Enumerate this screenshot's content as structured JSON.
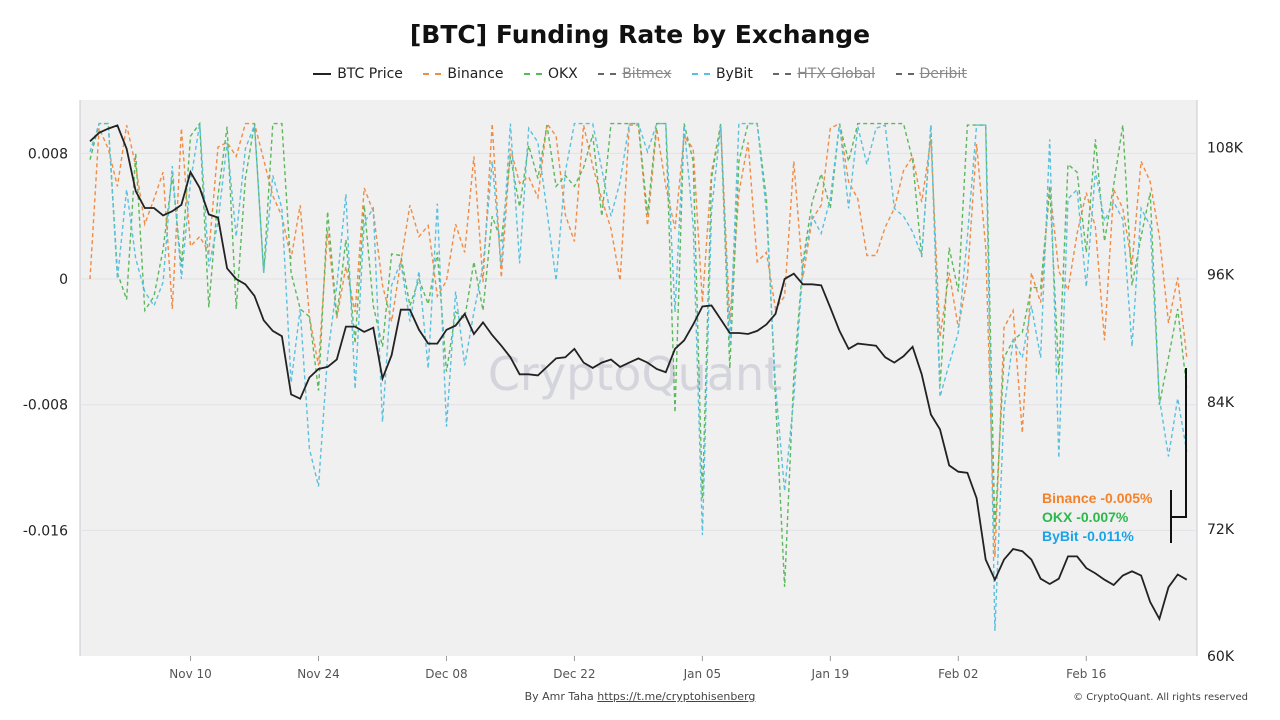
{
  "chart_data": {
    "type": "line",
    "title": "[BTC] Funding Rate by Exchange",
    "watermark": "CryptoQuant",
    "legend": [
      {
        "name": "BTC Price",
        "color": "#222222",
        "style": "solid",
        "hidden": false
      },
      {
        "name": "Binance",
        "color": "#f08c45",
        "style": "dashed",
        "hidden": false
      },
      {
        "name": "OKX",
        "color": "#5cb85c",
        "style": "dashed",
        "hidden": false
      },
      {
        "name": "Bitmex",
        "color": "#666666",
        "style": "dashed",
        "hidden": true
      },
      {
        "name": "ByBit",
        "color": "#5bc0de",
        "style": "dashed",
        "hidden": false
      },
      {
        "name": "HTX Global",
        "color": "#666666",
        "style": "dashed",
        "hidden": true
      },
      {
        "name": "Deribit",
        "color": "#666666",
        "style": "dashed",
        "hidden": true
      }
    ],
    "legend_position": "top",
    "grid": true,
    "x_ticks": [
      {
        "date": "2024-11-10",
        "label": "Nov 10"
      },
      {
        "date": "2024-11-24",
        "label": "Nov 24"
      },
      {
        "date": "2024-12-08",
        "label": "Dec 08"
      },
      {
        "date": "2024-12-22",
        "label": "Dec 22"
      },
      {
        "date": "2025-01-05",
        "label": "Jan 05"
      },
      {
        "date": "2025-01-19",
        "label": "Jan 19"
      },
      {
        "date": "2025-02-02",
        "label": "Feb 02"
      },
      {
        "date": "2025-02-16",
        "label": "Feb 16"
      }
    ],
    "y_left": {
      "ylim": [
        -0.024,
        0.0114
      ],
      "ticks": [
        0.008,
        0,
        -0.008,
        -0.016
      ],
      "tick_labels": [
        "0.008",
        "0",
        "-0.008",
        "-0.016"
      ]
    },
    "y_right": {
      "ylim": [
        60,
        112.5
      ],
      "ticks": [
        108,
        96,
        84,
        72,
        60
      ],
      "tick_labels": [
        "108K",
        "96K",
        "84K",
        "72K",
        "60K"
      ]
    },
    "x": [
      "2024-10-30",
      "2024-10-31",
      "2024-11-01",
      "2024-11-02",
      "2024-11-03",
      "2024-11-04",
      "2024-11-05",
      "2024-11-06",
      "2024-11-07",
      "2024-11-08",
      "2024-11-09",
      "2024-11-10",
      "2024-11-11",
      "2024-11-12",
      "2024-11-13",
      "2024-11-14",
      "2024-11-15",
      "2024-11-16",
      "2024-11-17",
      "2024-11-18",
      "2024-11-19",
      "2024-11-20",
      "2024-11-21",
      "2024-11-22",
      "2024-11-23",
      "2024-11-24",
      "2024-11-25",
      "2024-11-26",
      "2024-11-27",
      "2024-11-28",
      "2024-11-29",
      "2024-11-30",
      "2024-12-01",
      "2024-12-02",
      "2024-12-03",
      "2024-12-04",
      "2024-12-05",
      "2024-12-06",
      "2024-12-07",
      "2024-12-08",
      "2024-12-09",
      "2024-12-10",
      "2024-12-11",
      "2024-12-12",
      "2024-12-13",
      "2024-12-14",
      "2024-12-15",
      "2024-12-16",
      "2024-12-17",
      "2024-12-18",
      "2024-12-19",
      "2024-12-20",
      "2024-12-21",
      "2024-12-22",
      "2024-12-23",
      "2024-12-24",
      "2024-12-25",
      "2024-12-26",
      "2024-12-27",
      "2024-12-28",
      "2024-12-29",
      "2024-12-30",
      "2024-12-31",
      "2025-01-01",
      "2025-01-02",
      "2025-01-03",
      "2025-01-04",
      "2025-01-05",
      "2025-01-06",
      "2025-01-07",
      "2025-01-08",
      "2025-01-09",
      "2025-01-10",
      "2025-01-11",
      "2025-01-12",
      "2025-01-13",
      "2025-01-14",
      "2025-01-15",
      "2025-01-16",
      "2025-01-17",
      "2025-01-18",
      "2025-01-19",
      "2025-01-20",
      "2025-01-21",
      "2025-01-22",
      "2025-01-23",
      "2025-01-24",
      "2025-01-25",
      "2025-01-26",
      "2025-01-27",
      "2025-01-28",
      "2025-01-29",
      "2025-01-30",
      "2025-01-31",
      "2025-02-01",
      "2025-02-02",
      "2025-02-03",
      "2025-02-04",
      "2025-02-05",
      "2025-02-06",
      "2025-02-07",
      "2025-02-08",
      "2025-02-09",
      "2025-02-10",
      "2025-02-11",
      "2025-02-12",
      "2025-02-13",
      "2025-02-14",
      "2025-02-15",
      "2025-02-16",
      "2025-02-17",
      "2025-02-18",
      "2025-02-19",
      "2025-02-20",
      "2025-02-21",
      "2025-02-22",
      "2025-02-23",
      "2025-02-24",
      "2025-02-25",
      "2025-02-26",
      "2025-02-27"
    ],
    "series": [
      {
        "name": "BTC Price",
        "axis": "right",
        "unit": "K",
        "values": [
          108.6,
          109.4,
          109.8,
          110.1,
          107.9,
          103.9,
          102.3,
          102.3,
          101.6,
          102.0,
          102.6,
          105.7,
          104.2,
          101.7,
          101.4,
          96.6,
          95.6,
          95.1,
          94.0,
          91.7,
          90.7,
          90.2,
          84.7,
          84.3,
          86.3,
          87.1,
          87.3,
          88.0,
          91.1,
          91.1,
          90.6,
          91.0,
          86.2,
          88.4,
          92.7,
          92.7,
          90.8,
          89.5,
          89.5,
          90.8,
          91.2,
          92.3,
          90.4,
          91.5,
          90.3,
          89.3,
          88.2,
          86.6,
          86.6,
          86.5,
          87.3,
          88.1,
          88.2,
          89.0,
          87.7,
          87.2,
          87.7,
          88.0,
          87.3,
          87.7,
          88.1,
          87.7,
          87.1,
          86.8,
          89.0,
          89.8,
          91.3,
          93.0,
          93.1,
          91.8,
          90.5,
          90.5,
          90.4,
          90.7,
          91.3,
          92.3,
          95.6,
          96.1,
          95.1,
          95.1,
          95.0,
          92.9,
          90.7,
          89.0,
          89.5,
          89.4,
          89.3,
          88.2,
          87.7,
          88.3,
          89.2,
          86.6,
          82.8,
          81.4,
          78.0,
          77.4,
          77.3,
          74.9,
          69.1,
          67.2,
          69.1,
          70.1,
          69.9,
          69.1,
          67.3,
          66.8,
          67.3,
          69.4,
          69.4,
          68.3,
          67.8,
          67.2,
          66.7,
          67.6,
          68.0,
          67.6,
          65.1,
          63.5,
          66.5,
          67.7,
          67.2
        ]
      },
      {
        "name": "Binance",
        "axis": "left",
        "values": [
          0,
          0.0096,
          0.0083,
          0.0059,
          0.0098,
          0.0072,
          0.0035,
          0.0051,
          0.0068,
          -0.0019,
          0.0096,
          0.0021,
          0.0027,
          0.0017,
          0.0084,
          0.0087,
          0.0078,
          0.0099,
          0.0099,
          0.0076,
          0.0053,
          0.004,
          0.0013,
          0.0047,
          -0.0024,
          -0.0055,
          0.0031,
          -0.0025,
          0.0008,
          -0.0021,
          0.0058,
          0.0043,
          -0.0004,
          -0.0027,
          0.0011,
          0.0047,
          0.0027,
          0.0034,
          -0.0011,
          -0.0001,
          0.0035,
          0.0017,
          0.0078,
          -0.0002,
          0.0099,
          0.0001,
          0.0083,
          0.0061,
          0.0065,
          0.0052,
          0.0099,
          0.0091,
          0.0041,
          0.0024,
          0.0098,
          0.0072,
          0.0051,
          0.0032,
          -0.0001,
          0.0098,
          0.0098,
          0.0034,
          0.0096,
          0.0059,
          0.0032,
          0.0091,
          0.0083,
          -0.0015,
          0.0068,
          0.0098,
          -0.0027,
          0.0055,
          0.0087,
          0.0011,
          0.0017,
          -0.0019,
          -0.0011,
          0.0075,
          0.0001,
          0.0038,
          0.0047,
          0.0096,
          0.0099,
          0.0062,
          0.0051,
          0.0015,
          0.0015,
          0.0033,
          0.0045,
          0.0069,
          0.0078,
          0.0049,
          0.0089,
          -0.0037,
          0.0004,
          -0.0031,
          0.0001,
          0.0086,
          0.002,
          -0.0177,
          -0.0031,
          -0.002,
          -0.0098,
          0.0004,
          -0.0015,
          0.0059,
          0.0005,
          -0.0007,
          0.0029,
          0.0055,
          0.0033,
          -0.0039,
          0.0057,
          0.0045,
          0.0009,
          0.0075,
          0.0062,
          0.0027,
          -0.0028,
          0.0001,
          -0.005
        ]
      },
      {
        "name": "OKX",
        "axis": "left",
        "values": [
          0.0076,
          0.0099,
          0.0099,
          0.0004,
          -0.0013,
          0.008,
          -0.002,
          -0.0011,
          0.0019,
          0.0066,
          0.0008,
          0.0091,
          0.0099,
          -0.0018,
          0.0053,
          0.0097,
          -0.0019,
          0.0064,
          0.0099,
          0.0004,
          0.0099,
          0.0099,
          0.0004,
          -0.0019,
          -0.0024,
          -0.0071,
          0.0043,
          -0.0024,
          0.0025,
          -0.0041,
          0.0047,
          -0.0017,
          -0.0043,
          0.0016,
          0.0015,
          -0.0017,
          0,
          -0.0016,
          0.0017,
          -0.0059,
          -0.0021,
          -0.0025,
          0.0011,
          -0.002,
          0.004,
          0.0024,
          0.0078,
          0.0046,
          0.0085,
          0.0064,
          0.0098,
          0.0059,
          0.0066,
          0.0059,
          0.0071,
          0.0092,
          0.004,
          0.0099,
          0.0099,
          0.0099,
          0.0099,
          0.0041,
          0.0099,
          0.0099,
          -0.0085,
          0.0099,
          0.0075,
          -0.014,
          0.0064,
          0.0099,
          -0.0057,
          0.0075,
          0.0099,
          0.0099,
          0.0051,
          -0.0076,
          -0.0196,
          -0.0062,
          0.0011,
          0.0049,
          0.0067,
          0.0045,
          0.0099,
          0.0075,
          0.0099,
          0.0099,
          0.0099,
          0.0099,
          0.0099,
          0.0099,
          0.0076,
          0.0014,
          0.0098,
          -0.0068,
          0.002,
          -0.0008,
          0.0098,
          0.0098,
          0.0098,
          -0.016,
          -0.005,
          -0.0039,
          -0.0034,
          -0.0005,
          -0.0006,
          0.0059,
          -0.0061,
          0.0073,
          0.0068,
          0.0017,
          0.0089,
          0.0024,
          0.006,
          0.0098,
          -0.0004,
          0.0027,
          0.0055,
          -0.008,
          -0.005,
          -0.0019,
          -0.007
        ]
      },
      {
        "name": "ByBit",
        "axis": "left",
        "values": [
          0.0081,
          0.0099,
          0.0099,
          0,
          0.0057,
          0.0013,
          -0.0008,
          -0.0017,
          -0.0002,
          0.0072,
          0,
          0.0062,
          0.0099,
          0.0008,
          0.0036,
          0.0087,
          0.0027,
          0.0083,
          0.0098,
          0.0004,
          0.0066,
          0.0045,
          -0.0066,
          -0.0019,
          -0.0108,
          -0.0132,
          -0.0049,
          -0.0004,
          0.0054,
          -0.007,
          0.0036,
          0.0045,
          -0.0091,
          -0.0004,
          0.0011,
          -0.0027,
          0.0005,
          -0.0057,
          0.0048,
          -0.0094,
          -0.0008,
          -0.0055,
          -0.0021,
          0.0008,
          0.0075,
          0.0008,
          0.0099,
          0.001,
          0.0096,
          0.0087,
          0.0043,
          -0.0001,
          0.0068,
          0.0099,
          0.0099,
          0.0099,
          0.007,
          0.004,
          0.0062,
          0.0099,
          0.0099,
          0.0081,
          0.0099,
          0.0099,
          -0.0021,
          0.0098,
          0.0034,
          -0.0163,
          0.0043,
          0.0098,
          -0.0043,
          0.0099,
          0.0099,
          0.0099,
          0.0043,
          -0.0068,
          -0.0135,
          -0.0076,
          0.0008,
          0.004,
          0.0029,
          0.0051,
          0.0099,
          0.0045,
          0.0097,
          0.0073,
          0.0096,
          0.0098,
          0.0045,
          0.004,
          0.003,
          0.0015,
          0.0098,
          -0.0075,
          -0.0054,
          -0.0034,
          0.0027,
          0.0098,
          0.0098,
          -0.0224,
          -0.0083,
          -0.0039,
          -0.005,
          -0.0017,
          -0.005,
          0.0089,
          -0.0114,
          0.0051,
          0.0057,
          -0.0005,
          0.0069,
          0.0037,
          0.0049,
          0.0038,
          -0.0043,
          0.0045,
          0.0034,
          -0.0076,
          -0.0113,
          -0.0076,
          -0.011
        ]
      }
    ],
    "annotations": [
      {
        "text": "Binance -0.005%",
        "color": "#f5822a"
      },
      {
        "text": "OKX -0.007%",
        "color": "#2eb84c"
      },
      {
        "text": "ByBit -0.011%",
        "color": "#1aa3e8"
      }
    ]
  },
  "footer": {
    "byline": "By Amr Taha",
    "link": "https://t.me/cryptohisenberg",
    "copyright": "© CryptoQuant. All rights reserved"
  }
}
